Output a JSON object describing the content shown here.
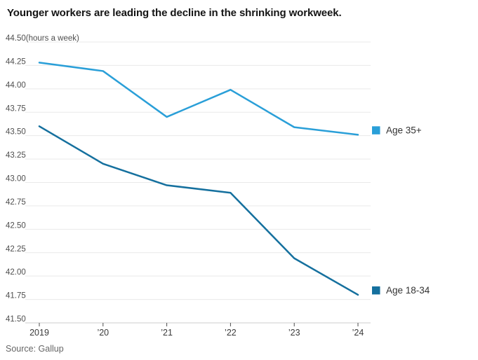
{
  "chart_data": {
    "type": "line",
    "title": "Younger workers are leading the decline in the shrinking workweek.",
    "unit_label": "(hours a week)",
    "source": "Source: Gallup",
    "x_tick_labels": [
      "2019",
      "’20",
      "’21",
      "’22",
      "’23",
      "’24"
    ],
    "x_years": [
      2019,
      2020,
      2021,
      2022,
      2023,
      2024
    ],
    "y_tick_labels": [
      "44.50",
      "44.25",
      "44.00",
      "43.75",
      "43.50",
      "43.25",
      "43.00",
      "42.75",
      "42.50",
      "42.25",
      "42.00",
      "41.75",
      "41.50"
    ],
    "ylim": [
      41.5,
      44.5
    ],
    "ytick_step": 0.25,
    "grid": true,
    "legend_position": "right of line ends",
    "series": [
      {
        "name": "Age 35+",
        "color": "#2a9fd8",
        "values": [
          44.28,
          44.19,
          43.7,
          43.99,
          43.59,
          43.51
        ]
      },
      {
        "name": "Age 18-34",
        "color": "#15709e",
        "values": [
          43.6,
          43.2,
          42.97,
          42.89,
          42.19,
          41.8
        ]
      }
    ]
  }
}
